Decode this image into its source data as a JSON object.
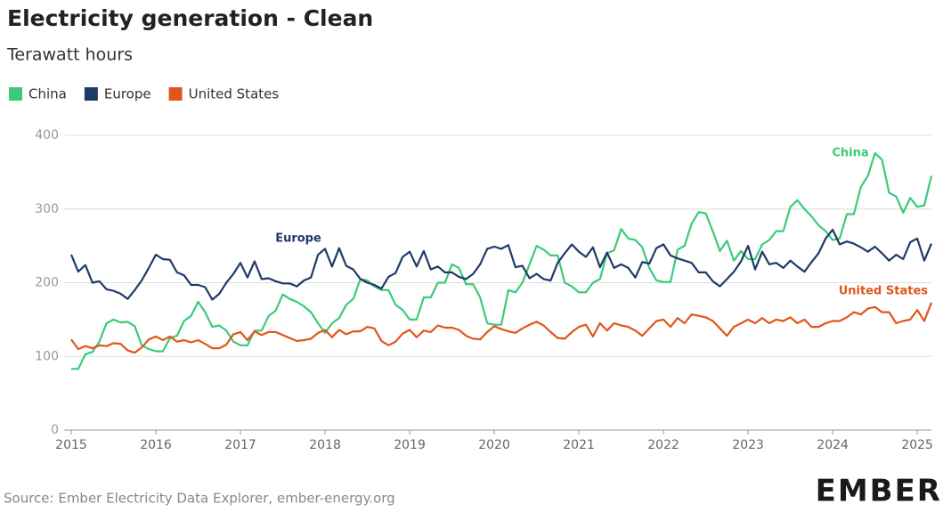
{
  "chart_data": {
    "type": "line",
    "title": "Electricity generation - Clean",
    "subtitle": "Terawatt hours",
    "source": "Source: Ember Electricity Data Explorer, ember-energy.org",
    "logo": "EMBER",
    "x": [
      2015,
      2015.083,
      2015.167,
      2015.25,
      2015.333,
      2015.417,
      2015.5,
      2015.583,
      2015.667,
      2015.75,
      2015.833,
      2015.917,
      2016,
      2016.083,
      2016.167,
      2016.25,
      2016.333,
      2016.417,
      2016.5,
      2016.583,
      2016.667,
      2016.75,
      2016.833,
      2016.917,
      2017,
      2017.083,
      2017.167,
      2017.25,
      2017.333,
      2017.417,
      2017.5,
      2017.583,
      2017.667,
      2017.75,
      2017.833,
      2017.917,
      2018,
      2018.083,
      2018.167,
      2018.25,
      2018.333,
      2018.417,
      2018.5,
      2018.583,
      2018.667,
      2018.75,
      2018.833,
      2018.917,
      2019,
      2019.083,
      2019.167,
      2019.25,
      2019.333,
      2019.417,
      2019.5,
      2019.583,
      2019.667,
      2019.75,
      2019.833,
      2019.917,
      2020,
      2020.083,
      2020.167,
      2020.25,
      2020.333,
      2020.417,
      2020.5,
      2020.583,
      2020.667,
      2020.75,
      2020.833,
      2020.917,
      2021,
      2021.083,
      2021.167,
      2021.25,
      2021.333,
      2021.417,
      2021.5,
      2021.583,
      2021.667,
      2021.75,
      2021.833,
      2021.917,
      2022,
      2022.083,
      2022.167,
      2022.25,
      2022.333,
      2022.417,
      2022.5,
      2022.583,
      2022.667,
      2022.75,
      2022.833,
      2022.917,
      2023,
      2023.083,
      2023.167,
      2023.25,
      2023.333,
      2023.417,
      2023.5,
      2023.583,
      2023.667,
      2023.75,
      2023.833,
      2023.917,
      2024,
      2024.083,
      2024.167,
      2024.25,
      2024.333,
      2024.417,
      2024.5,
      2024.583,
      2024.667,
      2024.75,
      2024.833,
      2024.917,
      2025,
      2025.083,
      2025.167
    ],
    "series": [
      {
        "name": "China",
        "color": "#3acb77",
        "values": [
          83,
          83,
          103,
          106,
          120,
          145,
          150,
          146,
          147,
          141,
          115,
          110,
          107,
          107,
          125,
          128,
          148,
          155,
          174,
          160,
          140,
          142,
          135,
          120,
          115,
          115,
          135,
          135,
          155,
          162,
          184,
          178,
          174,
          168,
          160,
          145,
          132,
          145,
          152,
          170,
          178,
          205,
          203,
          195,
          190,
          190,
          170,
          163,
          150,
          150,
          180,
          180,
          200,
          200,
          225,
          220,
          198,
          198,
          180,
          145,
          143,
          143,
          190,
          187,
          200,
          225,
          250,
          245,
          237,
          237,
          200,
          195,
          187,
          187,
          200,
          205,
          240,
          244,
          273,
          260,
          258,
          248,
          220,
          203,
          201,
          201,
          245,
          250,
          280,
          296,
          294,
          270,
          243,
          257,
          230,
          243,
          232,
          232,
          252,
          258,
          270,
          270,
          303,
          312,
          300,
          290,
          278,
          270,
          258,
          260,
          293,
          293,
          330,
          345,
          376,
          367,
          322,
          317,
          295,
          315,
          303,
          305,
          345
        ]
      },
      {
        "name": "Europe",
        "color": "#1f3a68",
        "values": [
          238,
          215,
          224,
          200,
          202,
          191,
          189,
          185,
          178,
          190,
          203,
          220,
          238,
          232,
          231,
          214,
          210,
          197,
          197,
          194,
          177,
          185,
          200,
          212,
          227,
          207,
          229,
          205,
          206,
          202,
          199,
          199,
          195,
          203,
          207,
          238,
          246,
          222,
          247,
          223,
          218,
          205,
          200,
          197,
          192,
          208,
          213,
          235,
          242,
          222,
          243,
          218,
          222,
          214,
          214,
          208,
          205,
          212,
          225,
          246,
          249,
          246,
          251,
          221,
          223,
          206,
          212,
          205,
          203,
          227,
          240,
          252,
          242,
          235,
          248,
          221,
          241,
          220,
          225,
          220,
          207,
          228,
          226,
          247,
          252,
          237,
          233,
          230,
          227,
          214,
          214,
          202,
          195,
          205,
          215,
          229,
          250,
          218,
          242,
          225,
          227,
          220,
          230,
          222,
          215,
          228,
          240,
          260,
          272,
          252,
          256,
          253,
          248,
          242,
          249,
          240,
          230,
          238,
          232,
          255,
          260,
          230,
          253
        ]
      },
      {
        "name": "United States",
        "color": "#e0561a",
        "values": [
          123,
          110,
          114,
          111,
          115,
          114,
          118,
          117,
          108,
          105,
          112,
          123,
          127,
          122,
          127,
          120,
          122,
          119,
          122,
          117,
          111,
          111,
          116,
          130,
          133,
          122,
          134,
          129,
          133,
          133,
          129,
          125,
          121,
          122,
          124,
          132,
          136,
          126,
          136,
          130,
          134,
          134,
          140,
          138,
          121,
          115,
          120,
          131,
          136,
          126,
          135,
          133,
          142,
          139,
          139,
          136,
          128,
          124,
          123,
          133,
          141,
          137,
          134,
          132,
          138,
          143,
          147,
          142,
          133,
          125,
          124,
          133,
          140,
          143,
          127,
          145,
          135,
          145,
          142,
          140,
          135,
          128,
          138,
          148,
          150,
          140,
          152,
          145,
          157,
          155,
          153,
          148,
          138,
          128,
          140,
          145,
          150,
          145,
          152,
          145,
          150,
          148,
          153,
          145,
          150,
          140,
          140,
          145,
          148,
          148,
          153,
          160,
          157,
          165,
          167,
          160,
          160,
          145,
          148,
          150,
          163,
          148,
          173
        ]
      }
    ],
    "xlim": [
      2015,
      2025.167
    ],
    "xticks": [
      2015,
      2016,
      2017,
      2018,
      2019,
      2020,
      2021,
      2022,
      2023,
      2024,
      2025
    ],
    "ylim": [
      0,
      400
    ],
    "yticks": [
      0,
      100,
      200,
      300,
      400
    ],
    "grid": true,
    "legend": "top-left"
  }
}
